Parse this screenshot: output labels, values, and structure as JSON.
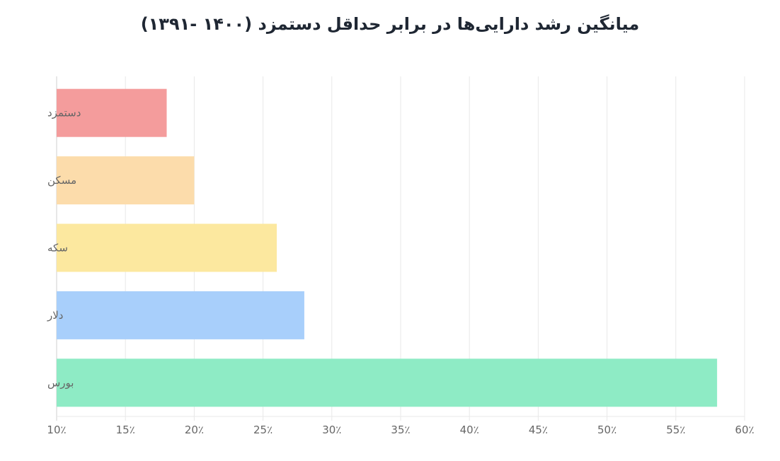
{
  "chart_data": {
    "type": "bar",
    "orientation": "horizontal",
    "title": "میانگین رشد دارایی‌ها در برابر حداقل دستمزد (۱۴۰۰ -۱۳۹۱)",
    "categories": [
      "دستمزد",
      "مسکن",
      "سکه",
      "دلار",
      "بورس"
    ],
    "values": [
      18,
      20,
      26,
      28,
      58
    ],
    "unit": "%",
    "colors": [
      "#f49c9c",
      "#fcdcab",
      "#fce89f",
      "#a8cffb",
      "#8eebc5"
    ],
    "xlim": [
      10,
      60
    ],
    "xticks": [
      10,
      15,
      20,
      25,
      30,
      35,
      40,
      45,
      50,
      55,
      60
    ],
    "xtick_labels": [
      "10٪",
      "15٪",
      "20٪",
      "25٪",
      "30٪",
      "35٪",
      "40٪",
      "45٪",
      "50٪",
      "55٪",
      "60٪"
    ],
    "grid": true,
    "legend": "none"
  }
}
